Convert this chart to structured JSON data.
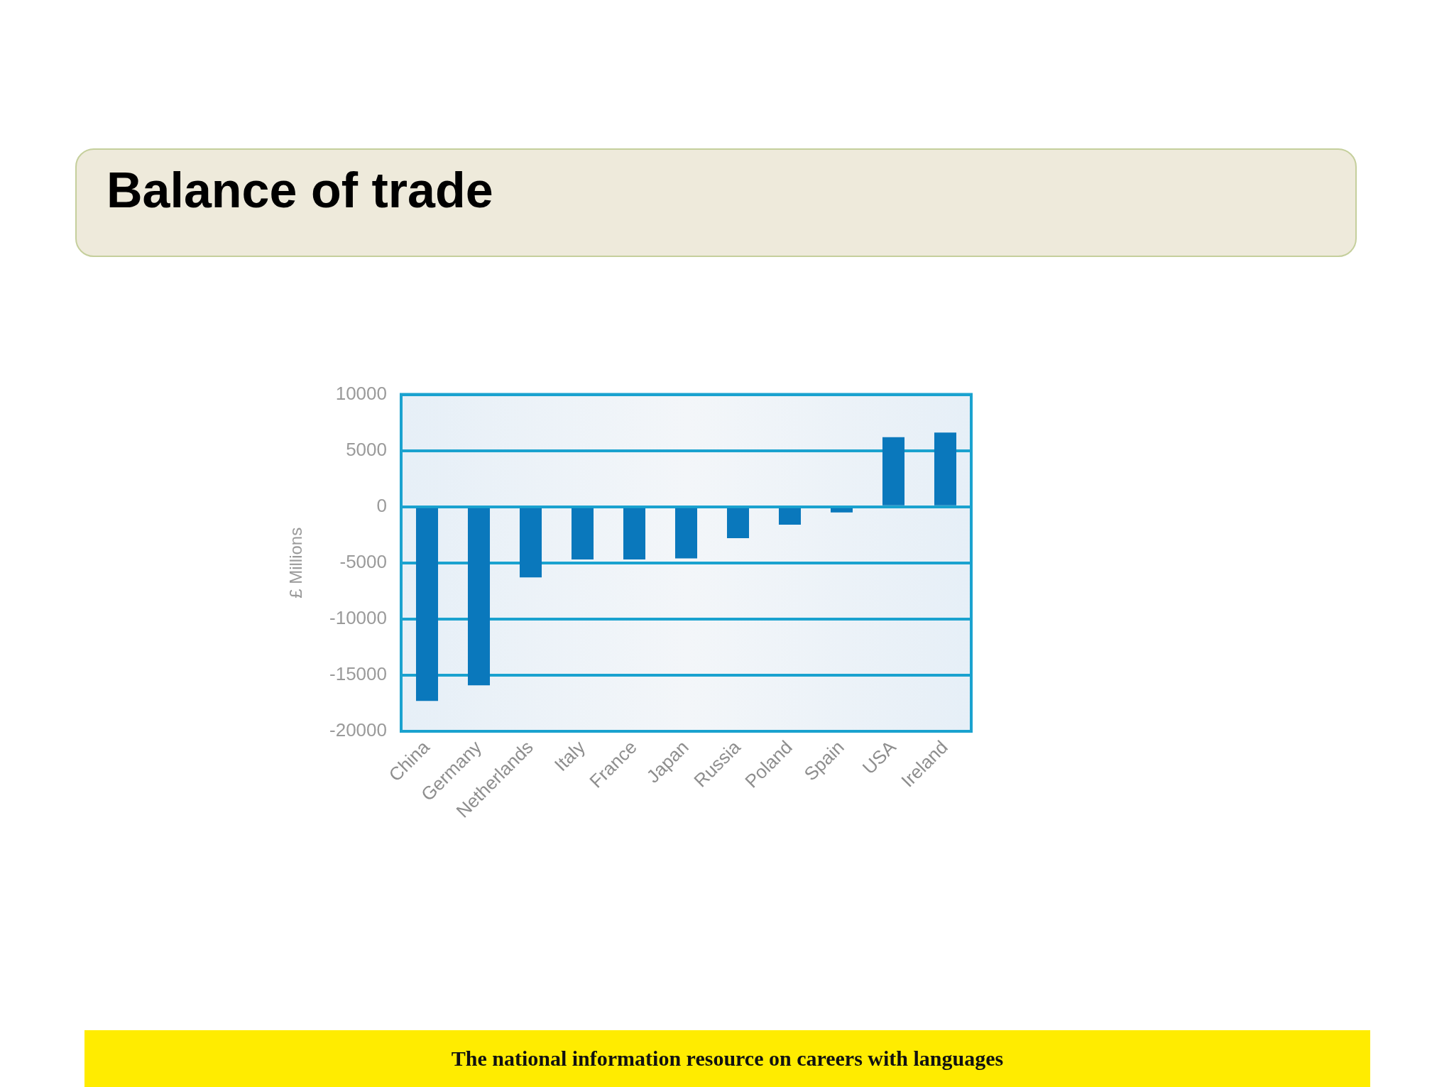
{
  "chart_data": {
    "type": "bar",
    "title": "Balance of trade",
    "ylabel": "£ Millions",
    "categories": [
      "China",
      "Germany",
      "Netherlands",
      "Italy",
      "France",
      "Japan",
      "Russia",
      "Poland",
      "Spain",
      "USA",
      "Ireland"
    ],
    "values": [
      -17300,
      -15900,
      -6300,
      -4700,
      -4700,
      -4600,
      -2800,
      -1600,
      -500,
      6200,
      6600
    ],
    "color": "#0a78bc",
    "ylim": [
      -20000,
      10000
    ],
    "yticks": [
      -20000,
      -15000,
      -10000,
      -5000,
      0,
      5000,
      10000
    ],
    "grid": "y",
    "annotations": [
      "The national information resource on careers with languages"
    ]
  }
}
